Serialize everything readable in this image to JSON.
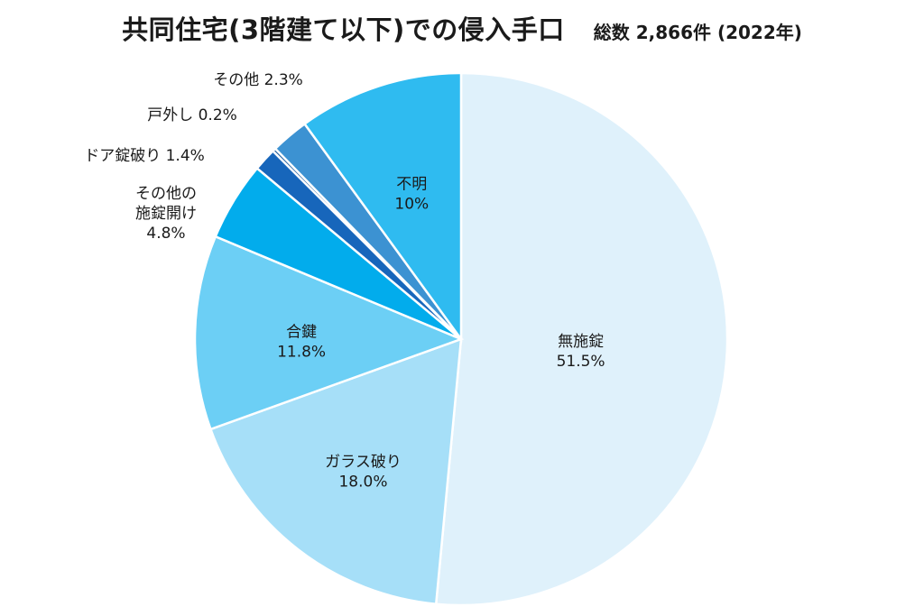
{
  "title": "共同住宅(3階建て以下)での侵入手口",
  "subtitle": "総数 2,866件 (2022年)",
  "chart_data": {
    "type": "pie",
    "start_angle_deg": 0,
    "direction": "clockwise",
    "slices": [
      {
        "label": "無施錠",
        "value": 51.5,
        "value_label": "51.5%",
        "color": "#dff1fb",
        "label_pos": "inside"
      },
      {
        "label": "ガラス破り",
        "value": 18.0,
        "value_label": "18.0%",
        "color": "#a6dff8",
        "label_pos": "inside"
      },
      {
        "label": "合鍵",
        "value": 11.8,
        "value_label": "11.8%",
        "color": "#6ccff5",
        "label_pos": "inside"
      },
      {
        "label": "その他の\n施錠開け",
        "value": 4.8,
        "value_label": "4.8%",
        "color": "#02acec",
        "label_pos": "outside"
      },
      {
        "label": "ドア錠破り",
        "value": 1.4,
        "value_label": "1.4%",
        "color": "#1766bb",
        "label_pos": "outside"
      },
      {
        "label": "戸外し",
        "value": 0.2,
        "value_label": "0.2%",
        "color": "#185a9c",
        "label_pos": "outside"
      },
      {
        "label": "その他",
        "value": 2.3,
        "value_label": "2.3%",
        "color": "#3c92d2",
        "label_pos": "outside"
      },
      {
        "label": "不明",
        "value": 10,
        "value_label": "10%",
        "color": "#2fbbf0",
        "label_pos": "inside"
      }
    ]
  }
}
